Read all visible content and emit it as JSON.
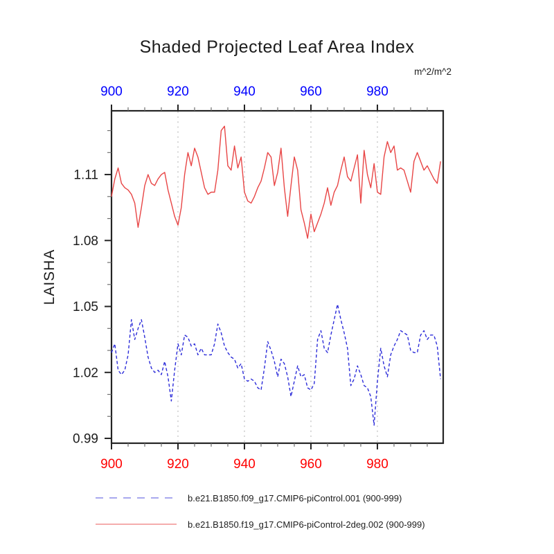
{
  "title": "Shaded Projected Leaf Area Index",
  "y_axis_label": "LAISHA",
  "units_label": "m^2/m^2",
  "colors": {
    "frame": "#242424",
    "minor_tick": "#6e6e6e",
    "grid": "#c9c9c9",
    "top_axis_labels": "#0000ff",
    "bottom_axis_labels": "#ff0000",
    "left_axis_labels": "#1c1c1c",
    "series_blue": "#2c2cd9",
    "series_red": "#e84545",
    "legend_blue": "#8c8ce8",
    "legend_red": "#f19090"
  },
  "legend": [
    {
      "label": "b.e21.B1850.f09_g17.CMIP6-piControl.001 (900-999)",
      "style": "dashed",
      "color": "#8c8ce8"
    },
    {
      "label": "b.e21.B1850.f19_g17.CMIP6-piControl-2deg.002 (900-999)",
      "style": "solid",
      "color": "#f19090"
    }
  ],
  "chart_data": {
    "type": "line",
    "title": "Shaded Projected Leaf Area Index",
    "xlabel": "",
    "ylabel": "LAISHA",
    "units": "m^2/m^2",
    "xlim": [
      900,
      999.8
    ],
    "ylim": [
      0.9878,
      1.139
    ],
    "x_ticks_major": [
      900,
      920,
      940,
      960,
      980
    ],
    "x_ticks_minor": [
      905,
      910,
      915,
      925,
      930,
      935,
      945,
      950,
      955,
      965,
      970,
      975,
      985,
      990,
      995
    ],
    "y_ticks_major": [
      0.99,
      1.02,
      1.05,
      1.08,
      1.11
    ],
    "y_ticks_minor": [
      1.0,
      1.01,
      1.03,
      1.04,
      1.06,
      1.07,
      1.09,
      1.1,
      1.12,
      1.13
    ],
    "grid_x": [
      920,
      940,
      960,
      980
    ],
    "grid_style": "dotted",
    "legend_position": "below",
    "x_start": 900,
    "x_step": 1,
    "series": [
      {
        "name": "b.e21.B1850.f09_g17.CMIP6-piControl.001 (900-999)",
        "color": "#0000ff",
        "line_style": "dashed",
        "values": [
          1.029,
          1.033,
          1.021,
          1.019,
          1.021,
          1.028,
          1.044,
          1.035,
          1.04,
          1.044,
          1.036,
          1.027,
          1.022,
          1.02,
          1.021,
          1.019,
          1.025,
          1.018,
          1.007,
          1.021,
          1.033,
          1.028,
          1.037,
          1.036,
          1.032,
          1.033,
          1.028,
          1.031,
          1.028,
          1.028,
          1.028,
          1.033,
          1.042,
          1.038,
          1.032,
          1.029,
          1.027,
          1.026,
          1.022,
          1.024,
          1.017,
          1.016,
          1.017,
          1.016,
          1.013,
          1.012,
          1.022,
          1.034,
          1.03,
          1.025,
          1.018,
          1.026,
          1.024,
          1.018,
          1.009,
          1.016,
          1.023,
          1.018,
          1.019,
          1.013,
          1.012,
          1.015,
          1.035,
          1.039,
          1.031,
          1.029,
          1.037,
          1.044,
          1.051,
          1.044,
          1.038,
          1.031,
          1.014,
          1.017,
          1.023,
          1.019,
          1.014,
          1.013,
          1.009,
          0.996,
          1.016,
          1.031,
          1.023,
          1.018,
          1.028,
          1.032,
          1.035,
          1.039,
          1.038,
          1.037,
          1.03,
          1.029,
          1.029,
          1.037,
          1.039,
          1.035,
          1.037,
          1.037,
          1.032,
          1.017
        ]
      },
      {
        "name": "b.e21.B1850.f19_g17.CMIP6-piControl-2deg.002 (900-999)",
        "color": "#ff0000",
        "line_style": "solid",
        "values": [
          1.1,
          1.108,
          1.113,
          1.106,
          1.104,
          1.103,
          1.101,
          1.097,
          1.086,
          1.095,
          1.105,
          1.11,
          1.106,
          1.105,
          1.108,
          1.11,
          1.111,
          1.103,
          1.097,
          1.091,
          1.087,
          1.095,
          1.11,
          1.12,
          1.114,
          1.122,
          1.118,
          1.111,
          1.104,
          1.101,
          1.102,
          1.102,
          1.112,
          1.13,
          1.132,
          1.114,
          1.112,
          1.123,
          1.113,
          1.118,
          1.102,
          1.098,
          1.097,
          1.1,
          1.104,
          1.107,
          1.113,
          1.12,
          1.118,
          1.105,
          1.111,
          1.122,
          1.104,
          1.091,
          1.105,
          1.118,
          1.112,
          1.094,
          1.088,
          1.081,
          1.092,
          1.084,
          1.088,
          1.092,
          1.097,
          1.104,
          1.096,
          1.102,
          1.105,
          1.112,
          1.118,
          1.109,
          1.107,
          1.113,
          1.119,
          1.097,
          1.121,
          1.11,
          1.104,
          1.115,
          1.102,
          1.101,
          1.118,
          1.125,
          1.12,
          1.123,
          1.112,
          1.113,
          1.112,
          1.107,
          1.102,
          1.116,
          1.12,
          1.116,
          1.112,
          1.114,
          1.111,
          1.108,
          1.106,
          1.116
        ]
      }
    ]
  }
}
